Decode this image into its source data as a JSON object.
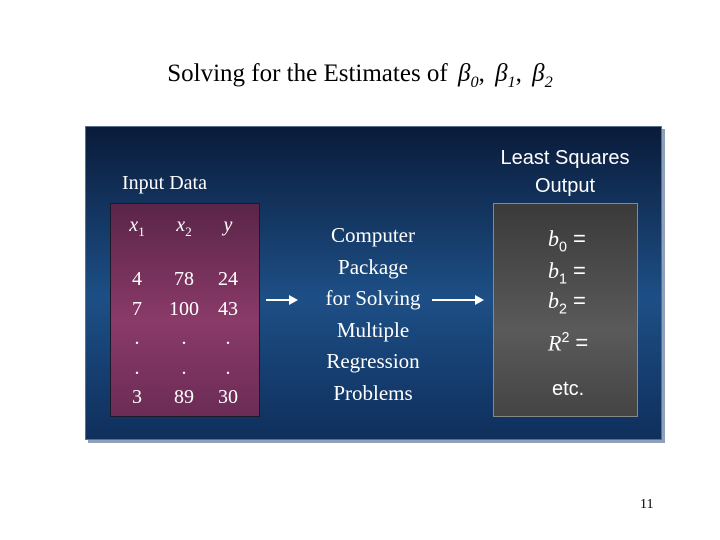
{
  "title": {
    "prefix": "Solving for the Estimates of",
    "separator": ",",
    "terms": [
      {
        "symbol": "β",
        "sub": "0"
      },
      {
        "symbol": "β",
        "sub": "1"
      },
      {
        "symbol": "β",
        "sub": "2"
      }
    ]
  },
  "input": {
    "label": "Input Data",
    "headers": [
      {
        "var": "x",
        "sub": "1"
      },
      {
        "var": "x",
        "sub": "2"
      },
      {
        "var": "y"
      }
    ],
    "rows": [
      [
        4,
        78,
        24
      ],
      [
        7,
        100,
        43
      ],
      [
        ".",
        ".",
        "."
      ],
      [
        ".",
        ".",
        "."
      ],
      [
        3,
        89,
        30
      ]
    ]
  },
  "process": {
    "lines": [
      "Computer",
      "Package",
      "for Solving",
      "Multiple",
      "Regression",
      "Problems"
    ]
  },
  "output": {
    "label": [
      "Least Squares",
      "Output"
    ],
    "items": [
      {
        "var": "b",
        "sub": "0",
        "sign": "="
      },
      {
        "var": "b",
        "sub": "1",
        "sign": "="
      },
      {
        "var": "b",
        "sub": "2",
        "sign": "="
      },
      {
        "var": "R",
        "sup": "2",
        "sign": "="
      }
    ],
    "etc": "etc."
  },
  "page_number": "11"
}
